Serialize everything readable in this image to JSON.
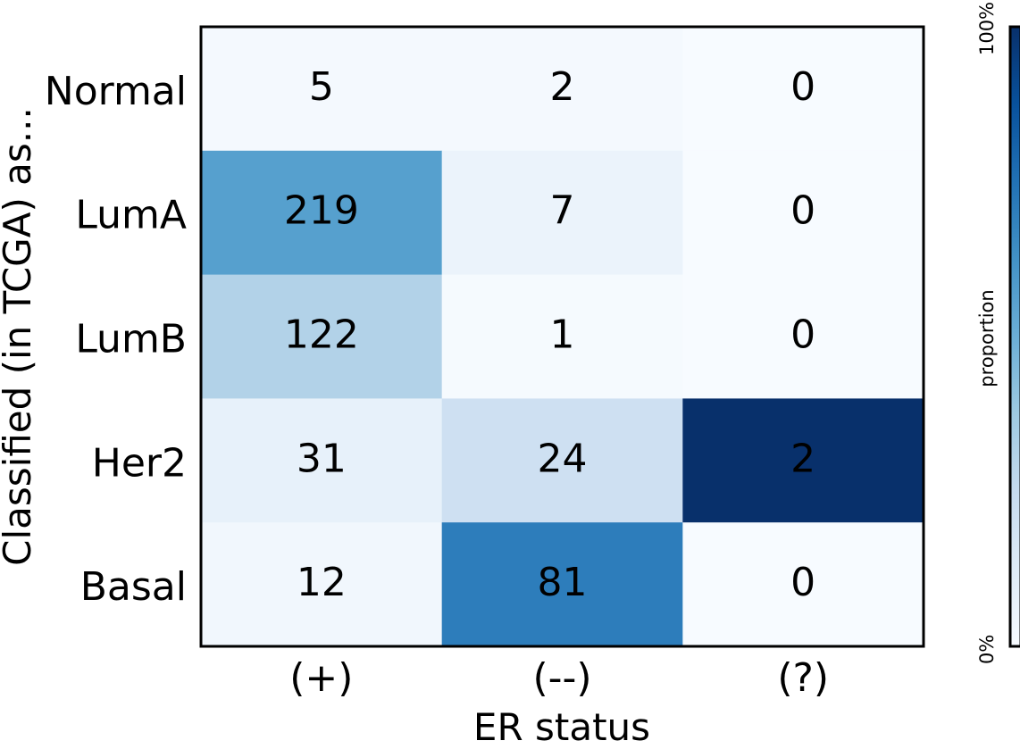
{
  "chart_data": {
    "type": "heatmap",
    "title": "",
    "xlabel": "ER status",
    "ylabel": "Classified (in TCGA) as...",
    "x_categories": [
      "(+)",
      "(--)",
      "(?)"
    ],
    "y_categories": [
      "Normal",
      "LumA",
      "LumB",
      "Her2",
      "Basal"
    ],
    "values": [
      [
        5,
        2,
        0
      ],
      [
        219,
        7,
        0
      ],
      [
        122,
        1,
        0
      ],
      [
        31,
        24,
        2
      ],
      [
        12,
        81,
        0
      ]
    ],
    "colorbar": {
      "label": "proportion",
      "min_label": "0%",
      "max_label": "100%",
      "colormap": "Blues",
      "range": [
        0,
        1
      ]
    },
    "normalization": "column proportion",
    "grid": false
  },
  "colors": {
    "text": "#000000",
    "frame": "#000000",
    "blues": [
      "#f7fbff",
      "#deebf7",
      "#c6dbef",
      "#9ecae1",
      "#6baed6",
      "#4292c6",
      "#2171b5",
      "#08519c",
      "#08306b"
    ]
  }
}
